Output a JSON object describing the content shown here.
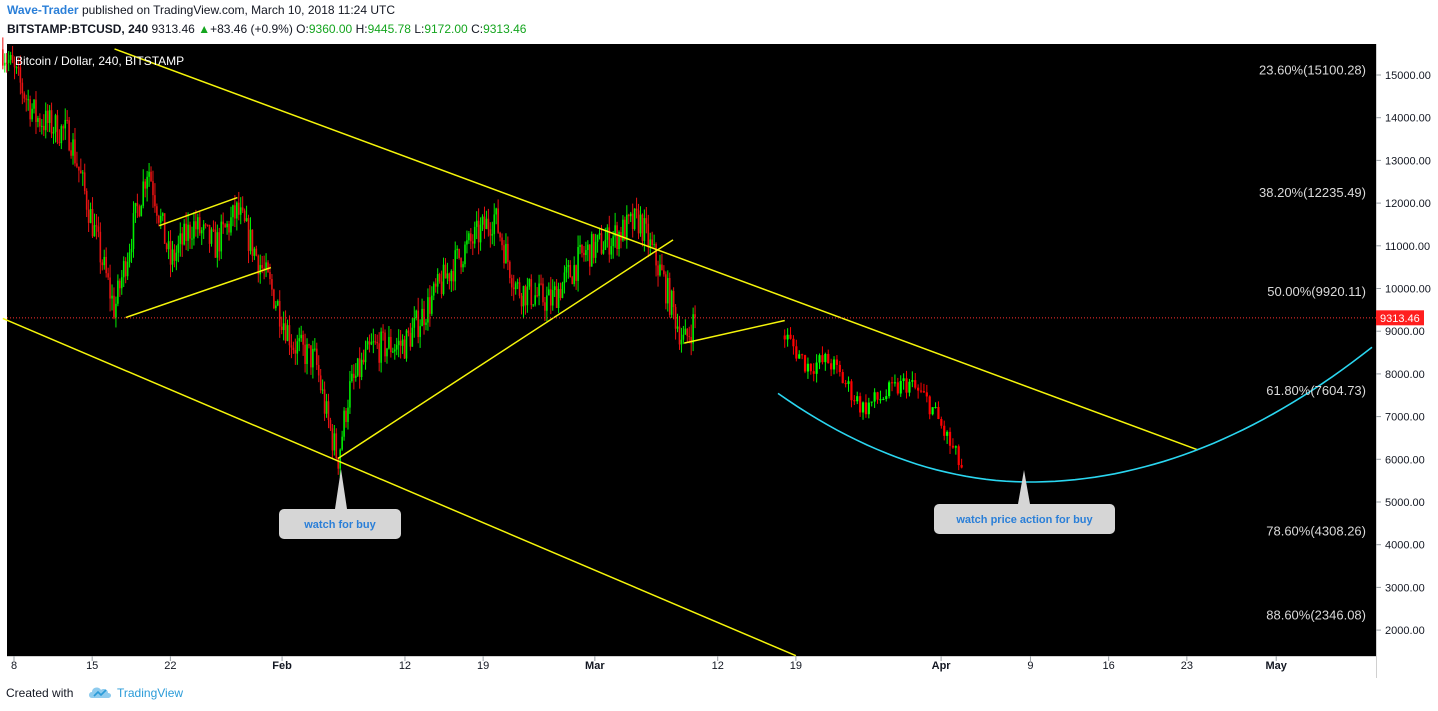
{
  "header": {
    "author": "Wave-Trader",
    "published_text": "published on TradingView.com, March 10, 2018 11:24 UTC",
    "symbol": "BITSTAMP:BTCUSD, 240",
    "last": "9313.46",
    "change": "+83.46 (+0.9%)",
    "o_label": "O:",
    "o": "9360.00",
    "h_label": "H:",
    "h": "9445.78",
    "l_label": "L:",
    "l": "9172.00",
    "c_label": "C:",
    "c": "9313.46"
  },
  "footer": {
    "created_with": "Created with",
    "brand": "TradingView"
  },
  "chart_data": {
    "type": "candlestick",
    "title": "Bitcoin / Dollar, 240, BITSTAMP",
    "ylim": [
      1400,
      15800
    ],
    "y_ticks": [
      "15000.00",
      "14000.00",
      "13000.00",
      "12000.00",
      "11000.00",
      "10000.00",
      "9000.00",
      "8000.00",
      "7000.00",
      "6000.00",
      "5000.00",
      "4000.00",
      "3000.00",
      "2000.00"
    ],
    "x_ticks": [
      {
        "label": "8",
        "bold": false
      },
      {
        "label": "15",
        "bold": false
      },
      {
        "label": "22",
        "bold": false
      },
      {
        "label": "Feb",
        "bold": true
      },
      {
        "label": "12",
        "bold": false
      },
      {
        "label": "19",
        "bold": false
      },
      {
        "label": "Mar",
        "bold": true
      },
      {
        "label": "12",
        "bold": false
      },
      {
        "label": "19",
        "bold": false
      },
      {
        "label": "Apr",
        "bold": true
      },
      {
        "label": "9",
        "bold": false
      },
      {
        "label": "16",
        "bold": false
      },
      {
        "label": "23",
        "bold": false
      },
      {
        "label": "May",
        "bold": true
      }
    ],
    "last_price": 9313.46,
    "last_price_label": "9313.46",
    "fib_levels": [
      {
        "label": "23.60%(15100.28)",
        "price": 15100.28
      },
      {
        "label": "38.20%(12235.49)",
        "price": 12235.49
      },
      {
        "label": "50.00%(9920.11)",
        "price": 9920.11
      },
      {
        "label": "61.80%(7604.73)",
        "price": 7604.73
      },
      {
        "label": "78.60%(4308.26)",
        "price": 4308.26
      },
      {
        "label": "88.60%(2346.08)",
        "price": 2346.08
      }
    ],
    "price_path": [
      {
        "date": "2018-01-07",
        "price": 15600
      },
      {
        "date": "2018-01-10",
        "price": 14000
      },
      {
        "date": "2018-01-13",
        "price": 13600
      },
      {
        "date": "2018-01-17",
        "price": 9500
      },
      {
        "date": "2018-01-19",
        "price": 11800
      },
      {
        "date": "2018-01-20",
        "price": 12900
      },
      {
        "date": "2018-01-22",
        "price": 10600
      },
      {
        "date": "2018-01-24",
        "price": 11500
      },
      {
        "date": "2018-01-26",
        "price": 11000
      },
      {
        "date": "2018-01-28",
        "price": 11800
      },
      {
        "date": "2018-01-31",
        "price": 10000
      },
      {
        "date": "2018-02-02",
        "price": 8700
      },
      {
        "date": "2018-02-04",
        "price": 8300
      },
      {
        "date": "2018-02-05",
        "price": 7000
      },
      {
        "date": "2018-02-06",
        "price": 6000
      },
      {
        "date": "2018-02-07",
        "price": 7600
      },
      {
        "date": "2018-02-09",
        "price": 8600
      },
      {
        "date": "2018-02-12",
        "price": 8700
      },
      {
        "date": "2018-02-15",
        "price": 10000
      },
      {
        "date": "2018-02-17",
        "price": 10800
      },
      {
        "date": "2018-02-20",
        "price": 11700
      },
      {
        "date": "2018-02-22",
        "price": 10000
      },
      {
        "date": "2018-02-25",
        "price": 9700
      },
      {
        "date": "2018-02-28",
        "price": 10800
      },
      {
        "date": "2018-03-02",
        "price": 11100
      },
      {
        "date": "2018-03-05",
        "price": 11600
      },
      {
        "date": "2018-03-07",
        "price": 10300
      },
      {
        "date": "2018-03-09",
        "price": 8700
      },
      {
        "date": "2018-03-10",
        "price": 9313
      }
    ],
    "projection": [
      {
        "date": "2018-03-18",
        "price": 8900
      },
      {
        "date": "2018-03-20",
        "price": 8200
      },
      {
        "date": "2018-03-22",
        "price": 8300
      },
      {
        "date": "2018-03-25",
        "price": 7200
      },
      {
        "date": "2018-03-27",
        "price": 7500
      },
      {
        "date": "2018-03-29",
        "price": 7800
      },
      {
        "date": "2018-03-31",
        "price": 7300
      },
      {
        "date": "2018-04-03",
        "price": 5700
      }
    ],
    "annotations": [
      {
        "text": "watch for buy"
      },
      {
        "text": "watch price action for buy"
      }
    ],
    "colors": {
      "background": "#000000",
      "up": "#00ee00",
      "down": "#e81212",
      "projection_up": "#00ff00",
      "projection_down": "#ff0000",
      "trendline": "#f5f50a",
      "arc": "#2ad6f0",
      "last_price_line": "#ff3030",
      "axis_text": "#131722",
      "callout": "#d6d6d6",
      "callout_text": "#2a7fd8"
    }
  }
}
